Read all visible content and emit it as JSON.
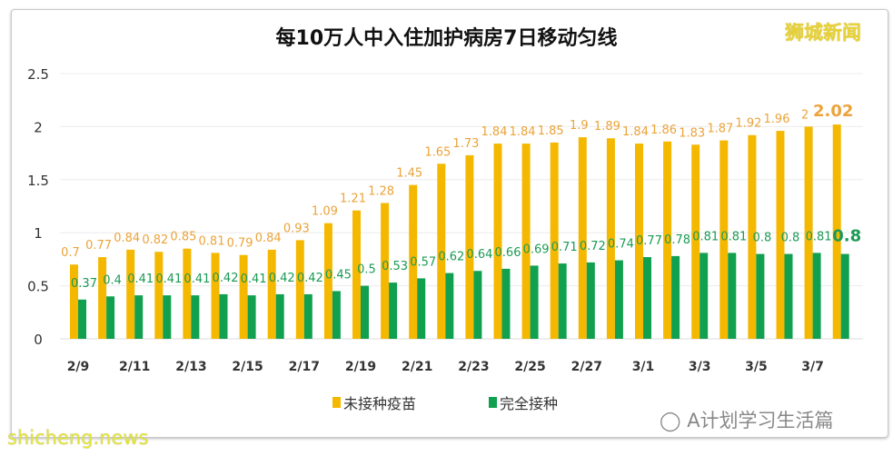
{
  "chart_data": {
    "type": "bar",
    "title": "每10万人中入住加护病房7日移动匀线",
    "categories": [
      "2/9",
      "2/10",
      "2/11",
      "2/12",
      "2/13",
      "2/14",
      "2/15",
      "2/16",
      "2/17",
      "2/18",
      "2/19",
      "2/20",
      "2/21",
      "2/22",
      "2/23",
      "2/24",
      "2/25",
      "2/26",
      "2/27",
      "2/28",
      "3/1",
      "3/2",
      "3/3",
      "3/4",
      "3/5",
      "3/6",
      "3/7",
      "3/8"
    ],
    "tick_labels": [
      "2/9",
      "2/11",
      "2/13",
      "2/15",
      "2/17",
      "2/19",
      "2/21",
      "2/23",
      "2/25",
      "2/27",
      "3/1",
      "3/3",
      "3/5",
      "3/7"
    ],
    "series": [
      {
        "name": "未接种疫苗",
        "color": "#f5b800",
        "label_color": "#eba33a",
        "values": [
          0.7,
          0.77,
          0.84,
          0.82,
          0.85,
          0.81,
          0.79,
          0.84,
          0.93,
          1.09,
          1.21,
          1.28,
          1.45,
          1.65,
          1.73,
          1.84,
          1.84,
          1.85,
          1.9,
          1.89,
          1.84,
          1.86,
          1.83,
          1.87,
          1.92,
          1.96,
          2,
          2.02
        ]
      },
      {
        "name": "完全接种",
        "color": "#11a050",
        "label_color": "#1b9a55",
        "values": [
          0.37,
          0.4,
          0.41,
          0.41,
          0.41,
          0.42,
          0.41,
          0.42,
          0.42,
          0.45,
          0.5,
          0.53,
          0.57,
          0.62,
          0.64,
          0.66,
          0.69,
          0.71,
          0.72,
          0.74,
          0.77,
          0.78,
          0.81,
          0.81,
          0.8,
          0.8,
          0.81,
          0.8
        ]
      }
    ],
    "yticks": [
      "0",
      "0.5",
      "1",
      "1.5",
      "2",
      "2.5"
    ],
    "ylim": [
      0,
      2.5
    ],
    "grid": true,
    "legend": "bottom",
    "xlabel": "",
    "ylabel": ""
  },
  "watermarks": {
    "logo": "狮城新闻",
    "wechat": "A计划学习生活篇",
    "site": "shicheng.news"
  }
}
